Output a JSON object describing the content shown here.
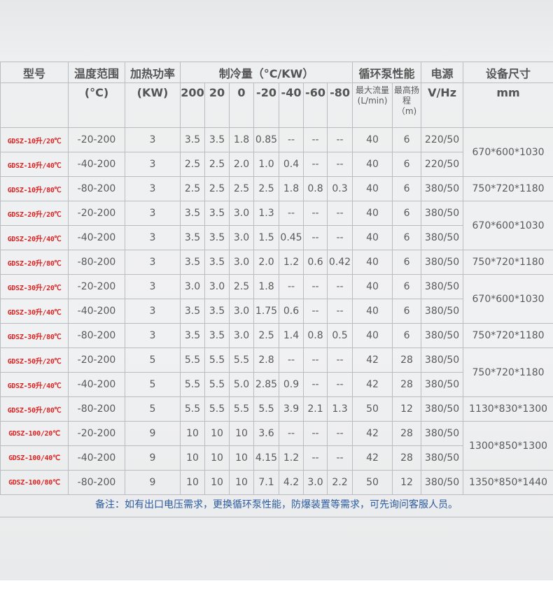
{
  "header": {
    "model": "型号",
    "temp_range": "温度范围",
    "heat_power": "加热功率",
    "cooling": "制冷量（°C/KW）",
    "pump": "循环泵性能",
    "power_supply": "电源",
    "size": "设备尺寸",
    "temp_unit": "(°C)",
    "heat_unit": "(KW)",
    "cooling_temps": [
      "200",
      "20",
      "0",
      "-20",
      "-40",
      "-60",
      "-80"
    ],
    "flow": "最大流量(L/min)",
    "head": "最高扬程（m)",
    "supply_unit": "V/Hz",
    "size_unit": "mm"
  },
  "rows": [
    {
      "model": "GDSZ-10升/20℃",
      "temp": "-20-200",
      "power": "3",
      "cool": [
        "3.5",
        "3.5",
        "1.8",
        "0.85",
        "--",
        "--",
        "--"
      ],
      "flow": "40",
      "head": "6",
      "supply": "220/50",
      "size": "670*600*1030",
      "span": 2
    },
    {
      "model": "GDSZ-10升/40℃",
      "temp": "-40-200",
      "power": "3",
      "cool": [
        "2.5",
        "2.5",
        "2.0",
        "1.0",
        "0.4",
        "--",
        "--"
      ],
      "flow": "40",
      "head": "6",
      "supply": "220/50"
    },
    {
      "model": "GDSZ-10升/80℃",
      "temp": "-80-200",
      "power": "3",
      "cool": [
        "2.5",
        "2.5",
        "2.5",
        "2.5",
        "1.8",
        "0.8",
        "0.3"
      ],
      "flow": "40",
      "head": "6",
      "supply": "380/50",
      "size": "750*720*1180",
      "span": 1
    },
    {
      "model": "GDSZ-20升/20℃",
      "temp": "-20-200",
      "power": "3",
      "cool": [
        "3.5",
        "3.5",
        "3.0",
        "1.3",
        "--",
        "--",
        "--"
      ],
      "flow": "40",
      "head": "6",
      "supply": "380/50",
      "size": "670*600*1030",
      "span": 2
    },
    {
      "model": "GDSZ-20升/40℃",
      "temp": "-40-200",
      "power": "3",
      "cool": [
        "3.5",
        "3.5",
        "3.0",
        "1.5",
        "0.45",
        "--",
        "--"
      ],
      "flow": "40",
      "head": "6",
      "supply": "380/50"
    },
    {
      "model": "GDSZ-20升/80℃",
      "temp": "-80-200",
      "power": "3",
      "cool": [
        "3.5",
        "3.5",
        "3.0",
        "2.0",
        "1.2",
        "0.6",
        "0.42"
      ],
      "flow": "40",
      "head": "6",
      "supply": "380/50",
      "size": "750*720*1180",
      "span": 1
    },
    {
      "model": "GDSZ-30升/20℃",
      "temp": "-20-200",
      "power": "3",
      "cool": [
        "3.0",
        "3.0",
        "2.5",
        "1.8",
        "--",
        "--",
        "--"
      ],
      "flow": "40",
      "head": "6",
      "supply": "380/50",
      "size": "670*600*1030",
      "span": 2
    },
    {
      "model": "GDSZ-30升/40℃",
      "temp": "-40-200",
      "power": "3",
      "cool": [
        "3.5",
        "3.5",
        "3.0",
        "1.75",
        "0.6",
        "--",
        "--"
      ],
      "flow": "40",
      "head": "6",
      "supply": "380/50"
    },
    {
      "model": "GDSZ-30升/80℃",
      "temp": "-80-200",
      "power": "3",
      "cool": [
        "3.5",
        "3.5",
        "3.0",
        "2.5",
        "1.4",
        "0.8",
        "0.5"
      ],
      "flow": "40",
      "head": "6",
      "supply": "380/50",
      "size": "750*720*1180",
      "span": 1
    },
    {
      "model": "GDSZ-50升/20℃",
      "temp": "-20-200",
      "power": "5",
      "cool": [
        "5.5",
        "5.5",
        "5.5",
        "2.8",
        "--",
        "--",
        "--"
      ],
      "flow": "42",
      "head": "28",
      "supply": "380/50",
      "size": "750*720*1180",
      "span": 2
    },
    {
      "model": "GDSZ-50升/40℃",
      "temp": "-40-200",
      "power": "5",
      "cool": [
        "5.5",
        "5.5",
        "5.0",
        "2.85",
        "0.9",
        "--",
        "--"
      ],
      "flow": "42",
      "head": "28",
      "supply": "380/50"
    },
    {
      "model": "GDSZ-50升/80℃",
      "temp": "-80-200",
      "power": "5",
      "cool": [
        "5.5",
        "5.5",
        "5.5",
        "5.5",
        "3.9",
        "2.1",
        "1.3"
      ],
      "flow": "50",
      "head": "12",
      "supply": "380/50",
      "size": "1130*830*1300",
      "span": 1
    },
    {
      "model": "GDSZ-100/20℃",
      "temp": "-20-200",
      "power": "9",
      "cool": [
        "10",
        "10",
        "10",
        "3.6",
        "--",
        "--",
        "--"
      ],
      "flow": "42",
      "head": "28",
      "supply": "380/50",
      "size": "1300*850*1300",
      "span": 2
    },
    {
      "model": "GDSZ-100/40℃",
      "temp": "-40-200",
      "power": "9",
      "cool": [
        "10",
        "10",
        "10",
        "4.15",
        "1.2",
        "--",
        "--"
      ],
      "flow": "42",
      "head": "28",
      "supply": "380/50"
    },
    {
      "model": "GDSZ-100/80℃",
      "temp": "-80-200",
      "power": "9",
      "cool": [
        "10",
        "10",
        "10",
        "7.1",
        "4.2",
        "3.0",
        "2.2"
      ],
      "flow": "50",
      "head": "12",
      "supply": "380/50",
      "size": "1350*850*1440",
      "span": 1
    }
  ],
  "note": "备注：如有出口电压需求，更换循环泵性能，防爆装置等需求，可先询问客服人员。",
  "colors": {
    "model_text": "#d22222",
    "note_text": "#2a5a9e",
    "border": "#b9bcc0"
  }
}
